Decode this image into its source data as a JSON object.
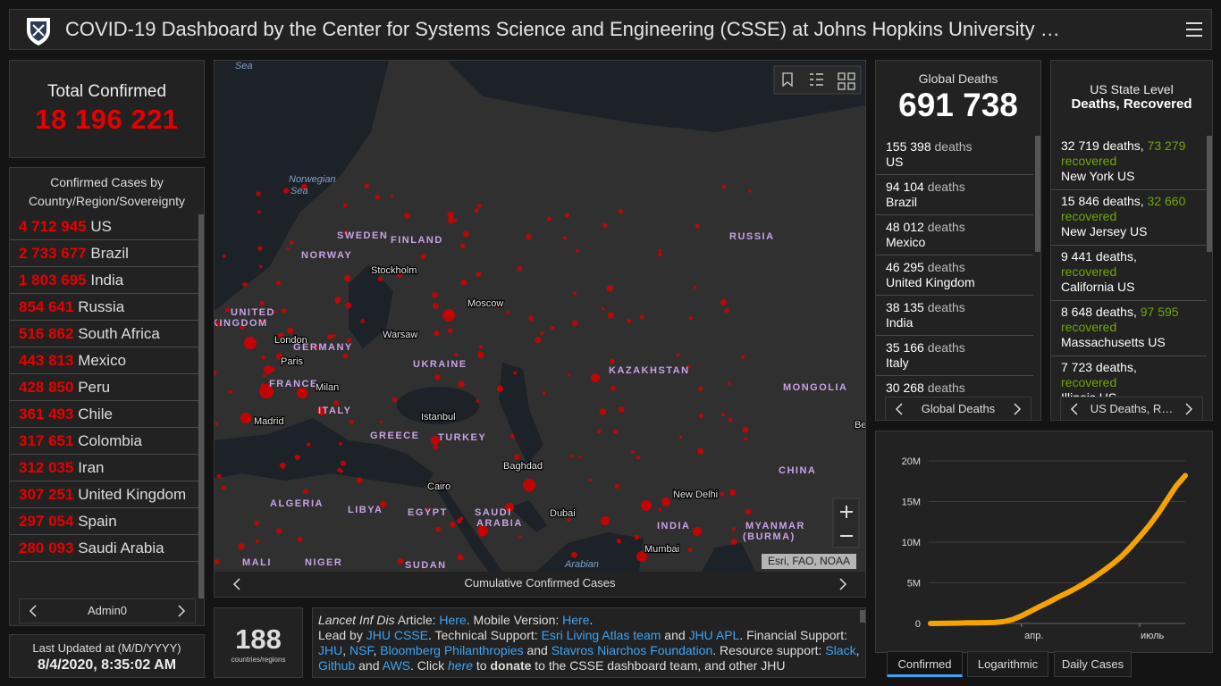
{
  "header": {
    "title": "COVID-19 Dashboard by the Center for Systems Science and Engineering (CSSE) at Johns Hopkins University …"
  },
  "total": {
    "label": "Total Confirmed",
    "value": "18 196 221"
  },
  "countries": {
    "title": "Confirmed Cases by Country/Region/Sovereignty",
    "rows": [
      {
        "count": "4 712 945",
        "name": "US"
      },
      {
        "count": "2 733 677",
        "name": "Brazil"
      },
      {
        "count": "1 803 695",
        "name": "India"
      },
      {
        "count": "854 641",
        "name": "Russia"
      },
      {
        "count": "516 862",
        "name": "South Africa"
      },
      {
        "count": "443 813",
        "name": "Mexico"
      },
      {
        "count": "428 850",
        "name": "Peru"
      },
      {
        "count": "361 493",
        "name": "Chile"
      },
      {
        "count": "317 651",
        "name": "Colombia"
      },
      {
        "count": "312 035",
        "name": "Iran"
      },
      {
        "count": "307 251",
        "name": "United Kingdom"
      },
      {
        "count": "297 054",
        "name": "Spain"
      },
      {
        "count": "280 093",
        "name": "Saudi Arabia"
      }
    ],
    "nav": "Admin0"
  },
  "updated": {
    "label": "Last Updated at (M/D/YYYY)",
    "value": "8/4/2020, 8:35:02 AM"
  },
  "map": {
    "labels": [
      "Sea",
      "Norwegian",
      "Sea",
      "SWEDEN",
      "FINLAND",
      "NORWAY",
      "RUSSIA",
      "Stockholm",
      "Moscow",
      "UNITED",
      "KINGDOM",
      "London",
      "GERMANY",
      "Paris",
      "Warsaw",
      "UKRAINE",
      "FRANCE",
      "Milan",
      "ITALY",
      "KAZAKHSTAN",
      "MONGOLIA",
      "Madrid",
      "Istanbul",
      "GREECE",
      "TURKEY",
      "Baghdad",
      "CHINA",
      "Cairo",
      "New Delhi",
      "ALGERIA",
      "LIBYA",
      "EGYPT",
      "SAUDI",
      "ARABIA",
      "Dubai",
      "INDIA",
      "MYANMAR",
      "(BURMA)",
      "Mumbai",
      "MALI",
      "NIGER",
      "SUDAN",
      "Arabian",
      "Beij"
    ],
    "attribution": "Esri, FAO, NOAA",
    "nav": "Cumulative Confirmed Cases"
  },
  "regions": {
    "value": "188",
    "label": "countries/regions"
  },
  "info": {
    "segments": [
      "Lancet Inf Dis",
      " Article: ",
      "Here",
      ". Mobile Version: ",
      "Here",
      ".",
      "Lead by ",
      "JHU CSSE",
      ". Technical Support: ",
      "Esri Living Atlas team",
      " and ",
      "JHU APL",
      ". Financial Support: ",
      "JHU",
      ", ",
      "NSF",
      ", ",
      "Bloomberg Philanthropies",
      " and ",
      "Stavros Niarchos Foundation",
      ". Resource support: ",
      "Slack",
      ", ",
      "Github",
      " and ",
      "AWS",
      ". Click ",
      "here",
      " to ",
      "donate",
      " to the CSSE dashboard team, and other JHU"
    ]
  },
  "deaths": {
    "title": "Global Deaths",
    "value": "691 738",
    "rows": [
      {
        "count": "155 398",
        "unit": "deaths",
        "place": "US"
      },
      {
        "count": "94 104",
        "unit": "deaths",
        "place": "Brazil"
      },
      {
        "count": "48 012",
        "unit": "deaths",
        "place": "Mexico"
      },
      {
        "count": "46 295",
        "unit": "deaths",
        "place": "United Kingdom"
      },
      {
        "count": "38 135",
        "unit": "deaths",
        "place": "India"
      },
      {
        "count": "35 166",
        "unit": "deaths",
        "place": "Italy"
      },
      {
        "count": "30 268",
        "unit": "deaths"
      }
    ],
    "nav": "Global Deaths"
  },
  "us_states": {
    "title": "US State Level",
    "subtitle": "Deaths, Recovered",
    "rows": [
      {
        "deaths": "32 719 deaths,",
        "recovered": "73 279",
        "recovered_label": "recovered",
        "place": "New York US"
      },
      {
        "deaths": "15 846 deaths,",
        "recovered": "32 660",
        "recovered_label": "recovered",
        "place": "New Jersey US"
      },
      {
        "deaths": "9 441 deaths,",
        "recovered_label": "recovered",
        "place": "California US"
      },
      {
        "deaths": "8 648 deaths,",
        "recovered": "97 595",
        "recovered_label": "recovered",
        "place": "Massachusetts US"
      },
      {
        "deaths": "7 723 deaths,",
        "recovered_label": "recovered",
        "place": "Illinois US"
      }
    ],
    "nav": "US Deaths, R…"
  },
  "chart_data": {
    "type": "line",
    "color": "#f5a300",
    "categories": [
      null,
      null,
      null,
      null,
      null,
      null,
      null,
      null,
      null,
      null,
      "апр.",
      null,
      null,
      null,
      null,
      null,
      null,
      null,
      null,
      null,
      null,
      null,
      null,
      "июль",
      null,
      null,
      null,
      null,
      null
    ],
    "values": [
      555,
      7800,
      28000,
      45000,
      76000,
      82000,
      95000,
      126000,
      218000,
      470000,
      930000,
      1500000,
      2080000,
      2620000,
      3220000,
      3760000,
      4340000,
      4990000,
      5690000,
      6470000,
      7320000,
      8260000,
      9410000,
      10670000,
      12000000,
      13500000,
      15200000,
      16900000,
      18196221
    ],
    "ylim": [
      0,
      20000000
    ],
    "yticks": [
      0,
      {
        "value": 5000000,
        "label": "5M"
      },
      {
        "value": 10000000,
        "label": "10M"
      },
      {
        "value": 15000000,
        "label": "15M"
      },
      {
        "value": 20000000,
        "label": "20M"
      }
    ],
    "grid": true
  },
  "tabs": [
    "Confirmed",
    "Logarithmic",
    "Daily Cases"
  ]
}
